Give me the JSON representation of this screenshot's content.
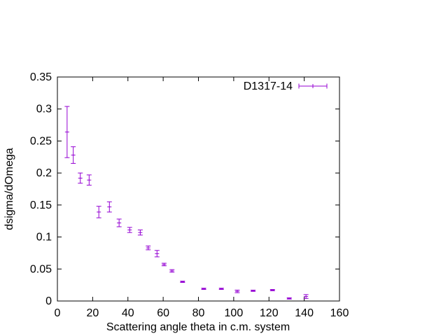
{
  "chart_data": {
    "type": "scatter",
    "title": "",
    "xlabel": "Scattering angle theta in c.m. system",
    "ylabel": "dsigma/dOmega",
    "xlim": [
      0,
      160
    ],
    "ylim": [
      0,
      0.35
    ],
    "xticks": [
      "0",
      "20",
      "40",
      "60",
      "80",
      "100",
      "120",
      "140",
      "160"
    ],
    "yticks": [
      "0",
      "0.05",
      "0.1",
      "0.15",
      "0.2",
      "0.25",
      "0.3",
      "0.35"
    ],
    "grid": false,
    "legend_position": "top-right",
    "color": "#9400d3",
    "series": [
      {
        "name": "D1317-14",
        "style": "error-bars",
        "x": [
          5.5,
          9.0,
          13.0,
          18.0,
          23.5,
          29.5,
          35.0,
          41.0,
          47.0,
          51.5,
          56.5,
          60.5,
          65.0,
          71.0,
          83.0,
          93.0,
          102.0,
          111.0,
          122.0,
          131.5,
          141.0
        ],
        "y": [
          0.264,
          0.228,
          0.192,
          0.189,
          0.139,
          0.147,
          0.122,
          0.111,
          0.107,
          0.083,
          0.074,
          0.057,
          0.047,
          0.03,
          0.019,
          0.019,
          0.015,
          0.016,
          0.017,
          0.004,
          0.007
        ],
        "err": [
          0.04,
          0.013,
          0.008,
          0.008,
          0.009,
          0.008,
          0.006,
          0.004,
          0.004,
          0.003,
          0.005,
          0.002,
          0.002,
          0.001,
          0.001,
          0.001,
          0.002,
          0.001,
          0.001,
          0.001,
          0.003
        ]
      }
    ]
  }
}
